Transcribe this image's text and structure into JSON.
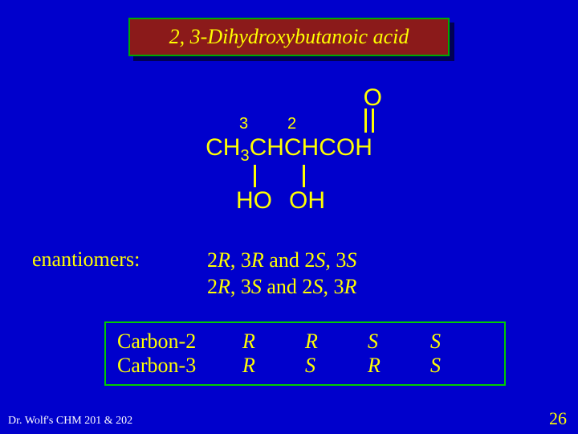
{
  "colors": {
    "background": "#0000cc",
    "text": "#ffff00",
    "title_box_bg": "#8b1a1a",
    "title_box_border": "#00aa00",
    "title_box_shadow": "#000055",
    "table_border": "#00cc00",
    "footer_text": "#ffffff"
  },
  "title": "2, 3-Dihydroxybutanoic acid",
  "structure": {
    "oxygen": "O",
    "label3": "3",
    "label2": "2",
    "formula_parts": {
      "ch3": "CH",
      "sub3": "3",
      "rest": "CHCHCOH"
    },
    "ho": "HO",
    "oh": "OH"
  },
  "enantiomers": {
    "label": "enantiomers:",
    "line1_a": "2",
    "line1_b": "R",
    "line1_c": ", 3",
    "line1_d": "R",
    "line1_e": " and 2",
    "line1_f": "S",
    "line1_g": ", 3",
    "line1_h": "S",
    "line2_a": "2",
    "line2_b": "R",
    "line2_c": ", 3",
    "line2_d": "S",
    "line2_e": " and 2",
    "line2_f": "S",
    "line2_g": ", 3",
    "line2_h": "R"
  },
  "table": {
    "rows": [
      {
        "label": "Carbon-2",
        "c1": "R",
        "c2": "R",
        "c3": "S",
        "c4": "S"
      },
      {
        "label": "Carbon-3",
        "c1": "R",
        "c2": "S",
        "c3": "R",
        "c4": "S"
      }
    ]
  },
  "footer": "Dr. Wolf's CHM 201 &  202",
  "pagenum": "26"
}
